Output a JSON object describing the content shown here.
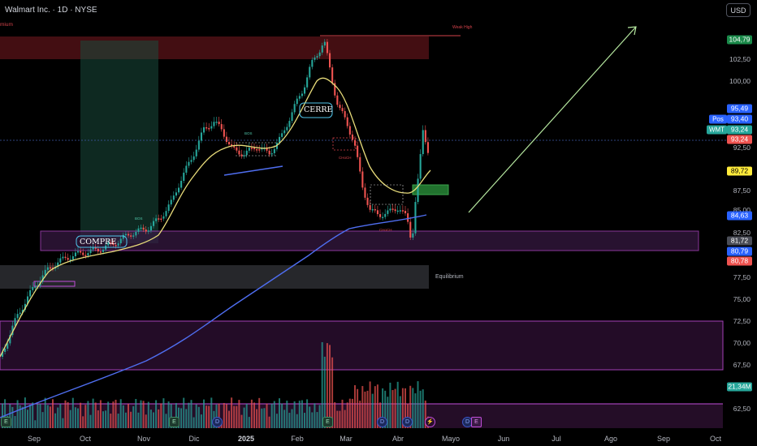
{
  "header": {
    "title": "Walmart Inc. · 1D · NYSE",
    "currency_button": "USD"
  },
  "price_axis": {
    "ticks": [
      "102,50",
      "100,00",
      "92,50",
      "87,50",
      "85,00",
      "82,50",
      "77,50",
      "75,00",
      "72,50",
      "70,00",
      "67,50",
      "62,50"
    ],
    "badges": {
      "last_high": "104,79",
      "p95": "95,49",
      "pos": "93,40",
      "wmt": "93,24",
      "red1": "93,24",
      "yellow": "89,72",
      "blue": "84,63",
      "gray": "81,72",
      "blue2": "80,79",
      "red2": "80,78",
      "volume": "21,34M"
    },
    "side_labels": {
      "pos": "Pos",
      "wmt": "WMT"
    }
  },
  "time_axis": {
    "ticks": [
      "Sep",
      "Oct",
      "Nov",
      "Dic",
      "2025",
      "Feb",
      "Mar",
      "Abr",
      "Mayo",
      "Jun",
      "Jul",
      "Ago",
      "Sep",
      "Oct"
    ]
  },
  "annotations": {
    "compre": "COMPRE",
    "cerre": "CERRE",
    "equilibrium": "Equilibrium",
    "weak_high": "Weak High",
    "premium": "mium",
    "bos": "BOS",
    "choch": "CHoCH"
  },
  "events": {
    "earnings": "E",
    "dividend": "D"
  },
  "colors": {
    "up": "#26a69a",
    "down": "#ef5350",
    "ma_short": "#e8dc7a",
    "ma_long": "#4f6ef0",
    "zone": "#c04dd8",
    "premium_zone": "#5a1216",
    "arrow": "#b6e8a0"
  }
}
